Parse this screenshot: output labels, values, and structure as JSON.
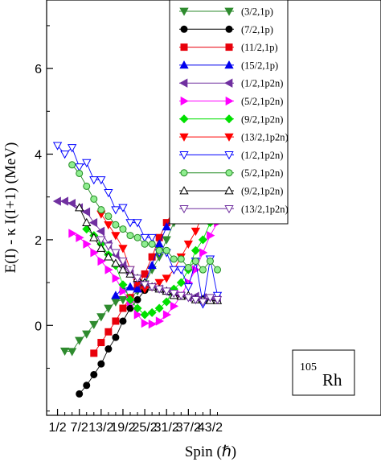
{
  "chart_data": {
    "type": "line",
    "xlabel": "Spin (ℏ)",
    "ylabel": "E(I) - κ I(I+1) (MeV)",
    "xlim": [
      -1,
      45
    ],
    "ylim": [
      -2.1,
      7.6
    ],
    "x_ticks": [
      {
        "value": 0.5,
        "label": "1/2"
      },
      {
        "value": 3.5,
        "label": "7/2"
      },
      {
        "value": 6.5,
        "label": "13/2"
      },
      {
        "value": 9.5,
        "label": "19/2"
      },
      {
        "value": 12.5,
        "label": "25/2"
      },
      {
        "value": 15.5,
        "label": "31/2"
      },
      {
        "value": 18.5,
        "label": "37/2"
      },
      {
        "value": 21.5,
        "label": "43/2"
      }
    ],
    "y_ticks": [
      {
        "value": 0,
        "label": "0"
      },
      {
        "value": 2,
        "label": "2"
      },
      {
        "value": 4,
        "label": "4"
      },
      {
        "value": 6,
        "label": "6"
      }
    ],
    "grid": false,
    "legend_position": "top-right",
    "annotation": {
      "mass": "105",
      "symbol": "Rh"
    },
    "series": [
      {
        "name": "(3/2,1p)",
        "color": "#2e8b2e",
        "marker": "triangle-down",
        "fill": true,
        "x": [
          1.5,
          2.5,
          3.5,
          4.5,
          5.5,
          6.5,
          7.5,
          8.5,
          9.5,
          10.5,
          11.5,
          12.5,
          13.5,
          14.5,
          15.5,
          16.5,
          17.5,
          18.5,
          19.5,
          20.5,
          21.5,
          22.5
        ],
        "y": [
          -0.6,
          -0.61,
          -0.35,
          -0.2,
          0.02,
          0.2,
          0.4,
          0.55,
          0.6,
          0.62,
          0.8,
          0.97,
          1.3,
          1.6,
          2.0,
          2.4,
          2.8,
          3.3,
          3.8,
          4.3,
          4.95,
          5.05
        ]
      },
      {
        "name": "(7/2,1p)",
        "color": "#000000",
        "marker": "circle",
        "fill": true,
        "x": [
          3.5,
          4.5,
          5.5,
          6.5,
          7.5,
          8.5,
          9.5,
          10.5,
          11.5,
          12.5
        ],
        "y": [
          -1.6,
          -1.4,
          -1.15,
          -0.9,
          -0.55,
          -0.28,
          0.1,
          0.4,
          0.6,
          0.82
        ]
      },
      {
        "name": "(11/2,1p)",
        "color": "#e8000b",
        "marker": "square",
        "fill": true,
        "x": [
          5.5,
          6.5,
          7.5,
          8.5,
          9.5,
          10.5,
          11.5,
          12.5,
          13.5,
          14.5,
          15.5,
          16.5,
          17.5,
          18.5,
          19.5,
          20.5,
          21.5,
          22.5
        ],
        "y": [
          -0.65,
          -0.4,
          -0.15,
          0.1,
          0.4,
          0.65,
          0.9,
          1.2,
          1.6,
          2.05,
          2.4,
          2.7,
          3.05,
          3.2,
          3.85,
          3.9,
          4.6,
          4.65
        ]
      },
      {
        "name": "(15/2,1p)",
        "color": "#0000ee",
        "marker": "triangle-up",
        "fill": true,
        "x": [
          8.5,
          9.5,
          10.5,
          11.5,
          12.5,
          13.5,
          14.5,
          15.5,
          16.5,
          17.5,
          18.5,
          19.5,
          20.5,
          21.5,
          22.5
        ],
        "y": [
          0.7,
          0.85,
          0.9,
          0.85,
          1.0,
          1.4,
          1.9,
          2.3,
          2.6,
          2.9,
          3.2,
          3.9,
          4.0,
          4.7,
          4.75
        ]
      },
      {
        "name": "(1/2,1p2n)",
        "color": "#7030a0",
        "marker": "triangle-left",
        "fill": true,
        "x": [
          0.5,
          1.5,
          2.5,
          3.5,
          4.5,
          5.5,
          6.5,
          7.5,
          8.5,
          9.5,
          10.5,
          11.5,
          12.5,
          13.5,
          14.5,
          15.5,
          16.5,
          17.5,
          18.5,
          19.5,
          20.5,
          21.5,
          22.5
        ],
        "y": [
          2.9,
          2.9,
          2.85,
          2.75,
          2.65,
          2.4,
          2.2,
          1.9,
          1.65,
          1.4,
          1.2,
          1.0,
          0.95,
          0.9,
          0.85,
          0.78,
          0.72,
          0.7,
          0.65,
          0.68,
          0.65,
          0.62,
          0.6
        ]
      },
      {
        "name": "(5/2,1p2n)",
        "color": "#ff00ff",
        "marker": "triangle-right",
        "fill": true,
        "x": [
          2.5,
          3.5,
          4.5,
          5.5,
          6.5,
          7.5,
          8.5,
          9.5,
          10.5,
          11.5,
          12.5,
          13.5,
          14.5,
          15.5,
          16.5,
          17.5,
          18.5,
          19.5,
          20.5,
          21.5,
          22.5
        ],
        "y": [
          2.15,
          2.05,
          1.9,
          1.7,
          1.5,
          1.3,
          1.1,
          0.8,
          0.55,
          0.25,
          0.05,
          0.03,
          0.1,
          0.25,
          0.45,
          0.7,
          1.0,
          1.3,
          1.7,
          2.1,
          2.4
        ]
      },
      {
        "name": "(9/2,1p2n)",
        "color": "#00e000",
        "marker": "diamond",
        "fill": true,
        "x": [
          4.5,
          5.5,
          6.5,
          7.5,
          8.5,
          9.5,
          10.5,
          11.5,
          12.5,
          13.5,
          14.5,
          15.5,
          16.5,
          17.5,
          18.5,
          19.5,
          20.5,
          21.5,
          22.5
        ],
        "y": [
          2.25,
          2.1,
          1.9,
          1.65,
          1.4,
          0.95,
          0.6,
          0.4,
          0.25,
          0.3,
          0.4,
          0.55,
          0.85,
          1.0,
          1.3,
          1.75,
          2.0,
          2.4,
          2.65
        ]
      },
      {
        "name": "(13/2,1p2n)",
        "color": "#ff0000",
        "marker": "triangle-down",
        "fill": true,
        "x": [
          6.5,
          7.5,
          8.5,
          9.5,
          10.5,
          11.5,
          12.5,
          13.5,
          14.5,
          15.5,
          16.5,
          17.5,
          18.5,
          19.5,
          20.5,
          21.5,
          22.5
        ],
        "y": [
          2.6,
          2.35,
          2.1,
          1.8,
          1.3,
          1.0,
          0.85,
          0.9,
          1.0,
          1.1,
          1.3,
          1.6,
          1.9,
          2.2,
          2.6,
          2.9,
          3.2
        ]
      },
      {
        "name": "(1/2,1p2n)",
        "color": "#0000ff",
        "marker": "triangle-down",
        "fill": false,
        "x": [
          0.5,
          1.5,
          2.5,
          3.5,
          4.5,
          5.5,
          6.5,
          7.5,
          8.5,
          9.5,
          10.5,
          11.5,
          12.5,
          13.5,
          14.5,
          15.5,
          16.5,
          17.5,
          18.5,
          19.5,
          20.5,
          21.5,
          22.5
        ],
        "y": [
          4.2,
          4.0,
          4.15,
          3.7,
          3.8,
          3.4,
          3.4,
          3.1,
          2.7,
          2.75,
          2.4,
          2.4,
          2.05,
          2.05,
          1.7,
          1.7,
          1.3,
          1.3,
          0.9,
          1.5,
          0.5,
          1.55,
          0.7
        ]
      },
      {
        "name": "(5/2,1p2n)",
        "color": "#228b22",
        "marker": "circle",
        "fill": true,
        "fill_color": "#90ee90",
        "x": [
          2.5,
          3.5,
          4.5,
          5.5,
          6.5,
          7.5,
          8.5,
          9.5,
          10.5,
          11.5,
          12.5,
          13.5,
          14.5,
          15.5,
          16.5,
          17.5,
          18.5,
          19.5,
          20.5,
          21.5,
          22.5
        ],
        "y": [
          3.75,
          3.55,
          3.25,
          2.95,
          2.7,
          2.55,
          2.35,
          2.25,
          2.1,
          2.05,
          1.9,
          1.9,
          1.75,
          1.75,
          1.55,
          1.55,
          1.35,
          1.5,
          1.3,
          1.5,
          1.3
        ]
      },
      {
        "name": "(9/2,1p2n)",
        "color": "#000000",
        "marker": "triangle-up",
        "fill": false,
        "x": [
          3.5,
          4.5,
          5.5,
          6.5,
          7.5,
          8.5,
          9.5,
          10.5,
          11.5,
          12.5,
          13.5,
          14.5,
          15.5,
          16.5,
          17.5,
          18.5,
          19.5,
          20.5,
          21.5,
          22.5
        ],
        "y": [
          2.75,
          2.4,
          2.05,
          1.8,
          1.6,
          1.45,
          1.3,
          1.2,
          1.1,
          1.0,
          0.9,
          0.85,
          0.8,
          0.7,
          0.68,
          0.7,
          0.6,
          0.6,
          0.58,
          0.58
        ]
      },
      {
        "name": "(13/2,1p2n)",
        "color": "#7030a0",
        "marker": "triangle-down",
        "fill": false,
        "x": [
          6.5,
          7.5,
          8.5,
          9.5,
          10.5,
          11.5,
          12.5,
          13.5,
          14.5,
          15.5,
          16.5,
          17.5,
          18.5,
          19.5,
          20.5,
          21.5,
          22.5
        ],
        "y": [
          2.0,
          1.85,
          1.7,
          1.5,
          1.3,
          1.1,
          0.95,
          0.9,
          0.85,
          0.8,
          0.75,
          0.7,
          0.65,
          0.6,
          0.55,
          0.65,
          0.6
        ]
      }
    ]
  }
}
